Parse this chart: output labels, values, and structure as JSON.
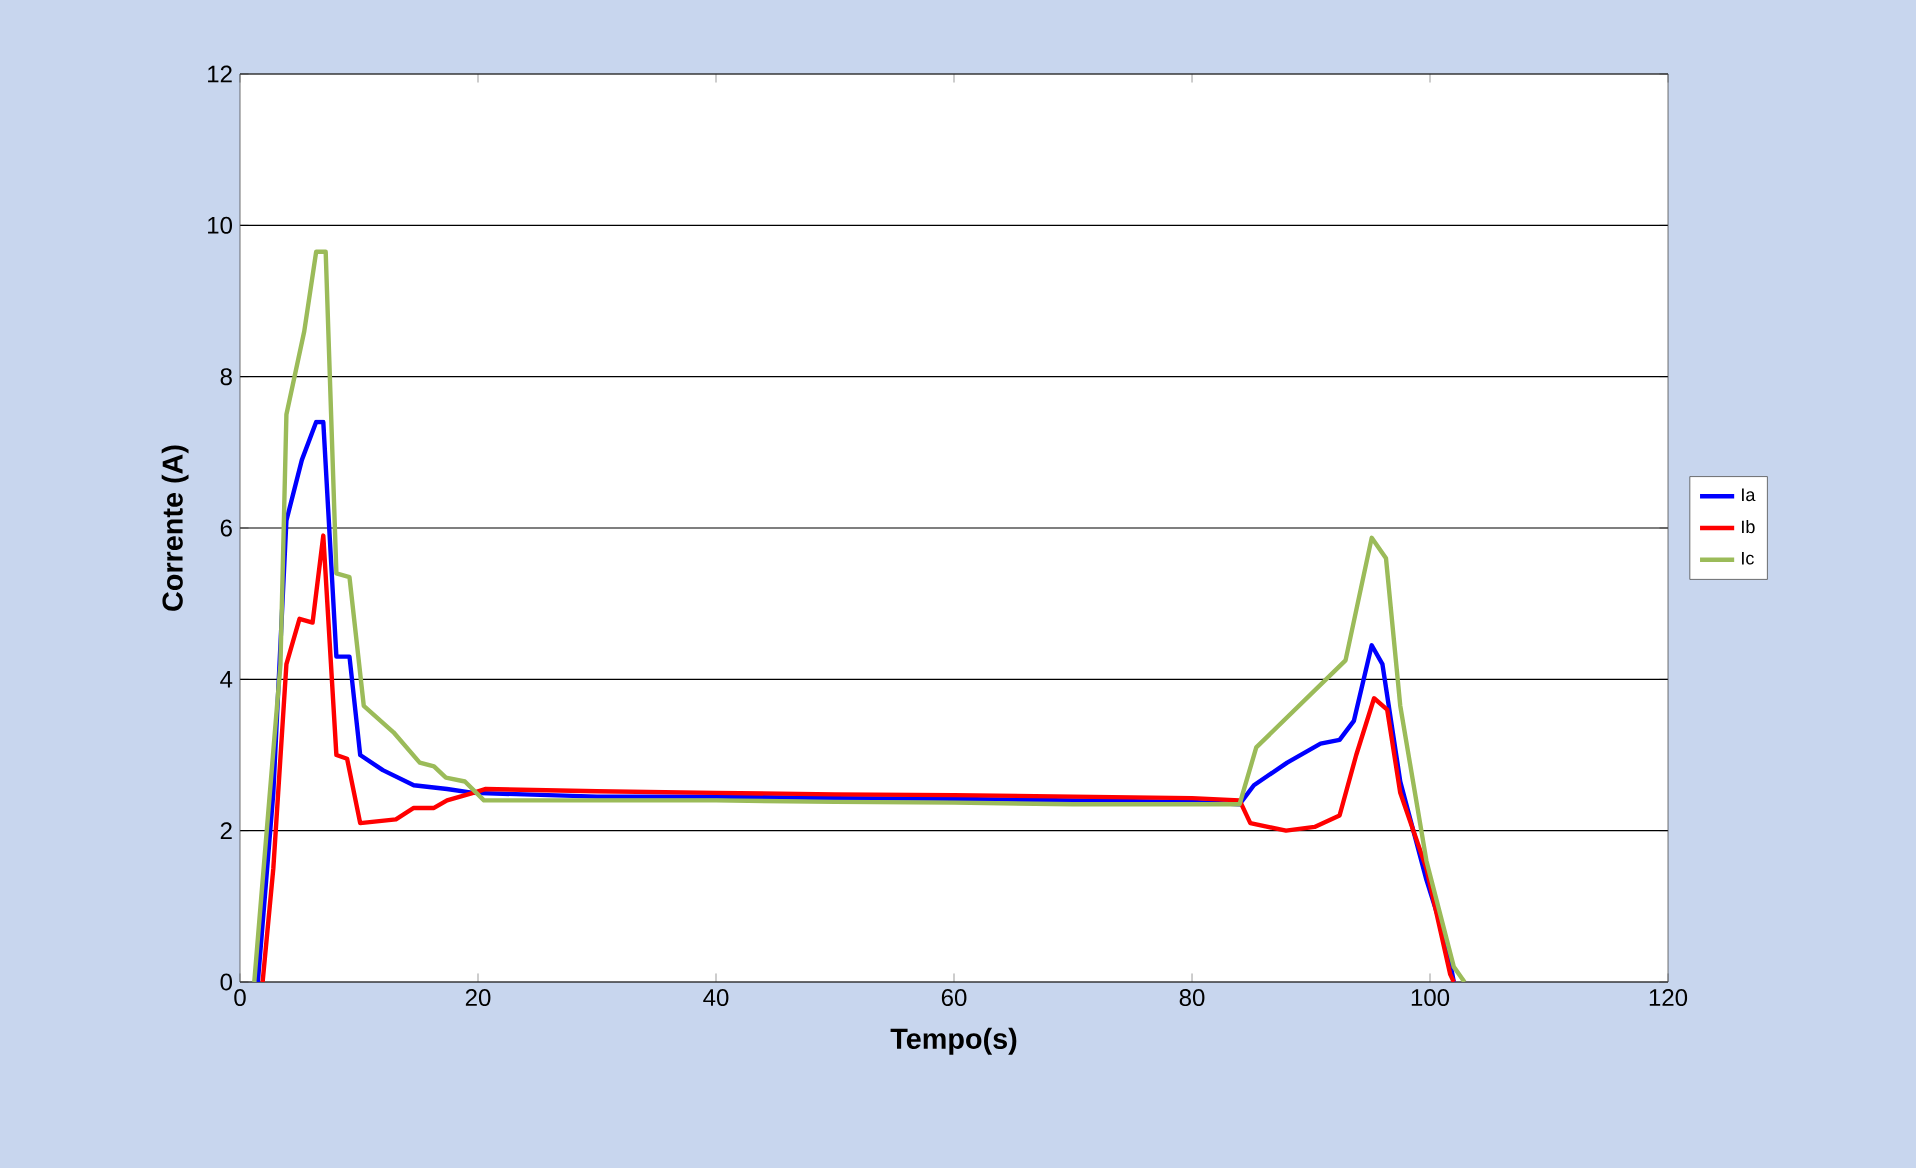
{
  "chart_data": {
    "type": "line",
    "xlabel": "Tempo(s)",
    "ylabel": "Corrente (A)",
    "xlim": [
      0,
      120
    ],
    "xticks": [
      0,
      20,
      40,
      60,
      80,
      100,
      120
    ],
    "ylim": [
      0,
      12
    ],
    "yticks": [
      0,
      2,
      4,
      6,
      8,
      10,
      12
    ],
    "grid": "y",
    "legend": "right",
    "marker": "none",
    "line_style": "solid",
    "series": [
      {
        "name": "Ia",
        "color": "#0000ff",
        "x": [
          1.5,
          2.8,
          3.9,
          5.2,
          6.4,
          7.0,
          8.1,
          9.2,
          10.1,
          12.0,
          14.6,
          17.4,
          19.6,
          30,
          40,
          50,
          60,
          70,
          80,
          84.0,
          85.2,
          88.0,
          90.8,
          92.4,
          93.6,
          95.1,
          96.0,
          97.5,
          99.7,
          101.4,
          102.0
        ],
        "values": [
          0,
          2.5,
          6.1,
          6.9,
          7.4,
          7.4,
          4.3,
          4.3,
          3.0,
          2.8,
          2.6,
          2.55,
          2.5,
          2.45,
          2.45,
          2.43,
          2.42,
          2.4,
          2.38,
          2.35,
          2.6,
          2.9,
          3.15,
          3.2,
          3.45,
          4.45,
          4.2,
          2.65,
          1.35,
          0.5,
          0
        ]
      },
      {
        "name": "Ib",
        "color": "#ff0000",
        "x": [
          1.9,
          2.8,
          3.9,
          5.0,
          6.1,
          7.0,
          8.1,
          9.0,
          10.1,
          13.1,
          14.6,
          16.3,
          17.4,
          19.6,
          20.6,
          30,
          40,
          50,
          60,
          70,
          80,
          84.0,
          84.9,
          87.9,
          90.3,
          92.4,
          93.8,
          95.3,
          96.4,
          97.5,
          99.7,
          101.7,
          102.0
        ],
        "values": [
          0,
          1.5,
          4.2,
          4.8,
          4.75,
          5.9,
          3.0,
          2.95,
          2.1,
          2.15,
          2.3,
          2.3,
          2.4,
          2.5,
          2.55,
          2.52,
          2.5,
          2.48,
          2.47,
          2.45,
          2.43,
          2.4,
          2.1,
          2.0,
          2.05,
          2.2,
          3.0,
          3.75,
          3.6,
          2.5,
          1.5,
          0.1,
          0
        ]
      },
      {
        "name": "Ic",
        "color": "#9bbb59",
        "x": [
          1.2,
          3.4,
          3.9,
          5.4,
          6.4,
          7.2,
          8.1,
          9.2,
          10.4,
          12.9,
          15.1,
          16.3,
          17.3,
          18.9,
          20.5,
          30,
          40,
          50,
          60,
          70,
          80,
          84.0,
          85.4,
          92.9,
          95.1,
          96.3,
          97.5,
          99.7,
          102.0,
          102.9
        ],
        "values": [
          0,
          4.2,
          7.5,
          8.6,
          9.65,
          9.65,
          5.4,
          5.35,
          3.65,
          3.3,
          2.9,
          2.85,
          2.7,
          2.65,
          2.4,
          2.4,
          2.4,
          2.38,
          2.37,
          2.35,
          2.35,
          2.35,
          3.1,
          4.25,
          5.87,
          5.6,
          3.65,
          1.6,
          0.2,
          0
        ]
      }
    ]
  }
}
